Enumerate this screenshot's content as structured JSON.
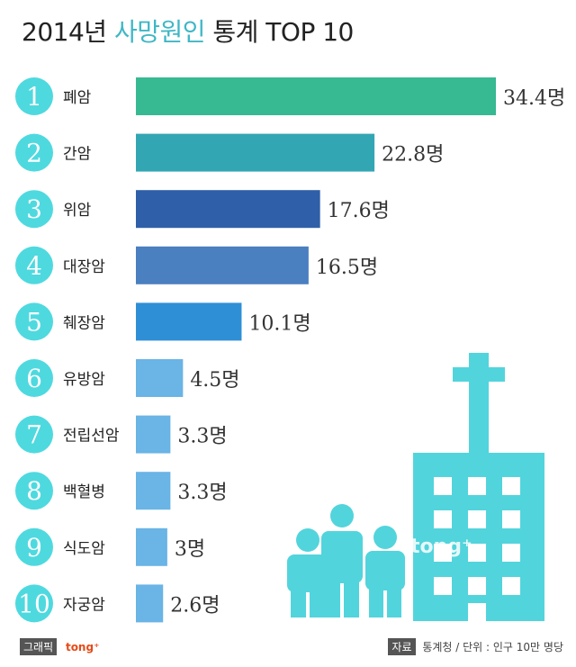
{
  "title": {
    "year": "2014년",
    "accent": "사망원인",
    "rest": "통계 TOP 10"
  },
  "footer": {
    "graphic_tag": "그래픽",
    "brand": "tong⁺",
    "source_tag": "자료",
    "source_rest": "통계청  /  단위 : 인구 10만 명당"
  },
  "watermark": "tong⁺",
  "chart_data": {
    "type": "bar",
    "orientation": "horizontal",
    "title": "2014년 사망원인 통계 TOP 10",
    "unit": "명",
    "categories": [
      "폐암",
      "간암",
      "위암",
      "대장암",
      "췌장암",
      "유방암",
      "전립선암",
      "백혈병",
      "식도암",
      "자궁암"
    ],
    "ranks": [
      "1",
      "2",
      "3",
      "4",
      "5",
      "6",
      "7",
      "8",
      "9",
      "10"
    ],
    "values": [
      34.4,
      22.8,
      17.6,
      16.5,
      10.1,
      4.5,
      3.3,
      3.3,
      3,
      2.6
    ],
    "value_labels": [
      "34.4명",
      "22.8명",
      "17.6명",
      "16.5명",
      "10.1명",
      "4.5명",
      "3.3명",
      "3.3명",
      "3명",
      "2.6명"
    ],
    "colors": [
      "#37b991",
      "#33a6b4",
      "#2e5fa8",
      "#4a7fc0",
      "#2f8fd6",
      "#6ab4e6",
      "#6ab4e6",
      "#6ab4e6",
      "#6ab4e6",
      "#6ab4e6"
    ],
    "badge_color": "#4ed9df",
    "illustration_color": "#52d4dc"
  }
}
